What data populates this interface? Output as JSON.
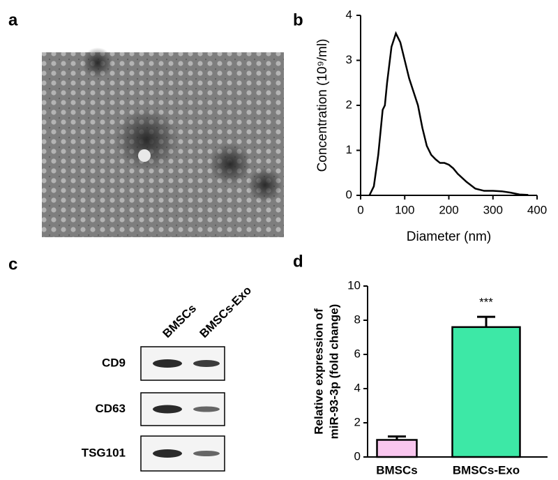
{
  "panel_labels": [
    "a",
    "b",
    "c",
    "d"
  ],
  "western_blot": {
    "lanes": [
      "BMSCs",
      "BMSCs-Exo"
    ],
    "proteins": [
      "CD9",
      "CD63",
      "TSG101"
    ]
  },
  "chart_data": [
    {
      "type": "line",
      "xlabel": "Diameter (nm)",
      "ylabel": "Concentration (10⁹/ml)",
      "x": [
        20,
        30,
        40,
        50,
        55,
        60,
        70,
        80,
        90,
        100,
        110,
        120,
        130,
        140,
        150,
        160,
        170,
        180,
        190,
        200,
        210,
        220,
        240,
        260,
        280,
        300,
        320,
        340,
        360,
        380
      ],
      "values": [
        0,
        0.2,
        0.9,
        1.9,
        2.0,
        2.5,
        3.3,
        3.6,
        3.4,
        3.0,
        2.6,
        2.3,
        2.0,
        1.5,
        1.1,
        0.9,
        0.8,
        0.72,
        0.72,
        0.68,
        0.6,
        0.48,
        0.3,
        0.15,
        0.1,
        0.1,
        0.09,
        0.06,
        0.02,
        0.01
      ],
      "color": "#000000",
      "xlim": [
        0,
        400
      ],
      "xticks": [
        0,
        100,
        200,
        300,
        400
      ],
      "ylim": [
        0,
        4
      ],
      "yticks": [
        0,
        1,
        2,
        3,
        4
      ]
    },
    {
      "type": "bar",
      "ylabel": [
        "Relative expression of",
        "miR-93-3p (fold change)"
      ],
      "categories": [
        "BMSCs",
        "BMSCs-Exo"
      ],
      "values": [
        1.0,
        7.6
      ],
      "errors": [
        0.2,
        0.6
      ],
      "colors": [
        "#f9c6ee",
        "#3de8a6"
      ],
      "annotation": "***",
      "ylim": [
        0,
        10
      ],
      "yticks": [
        0,
        2,
        4,
        6,
        8,
        10
      ]
    }
  ]
}
